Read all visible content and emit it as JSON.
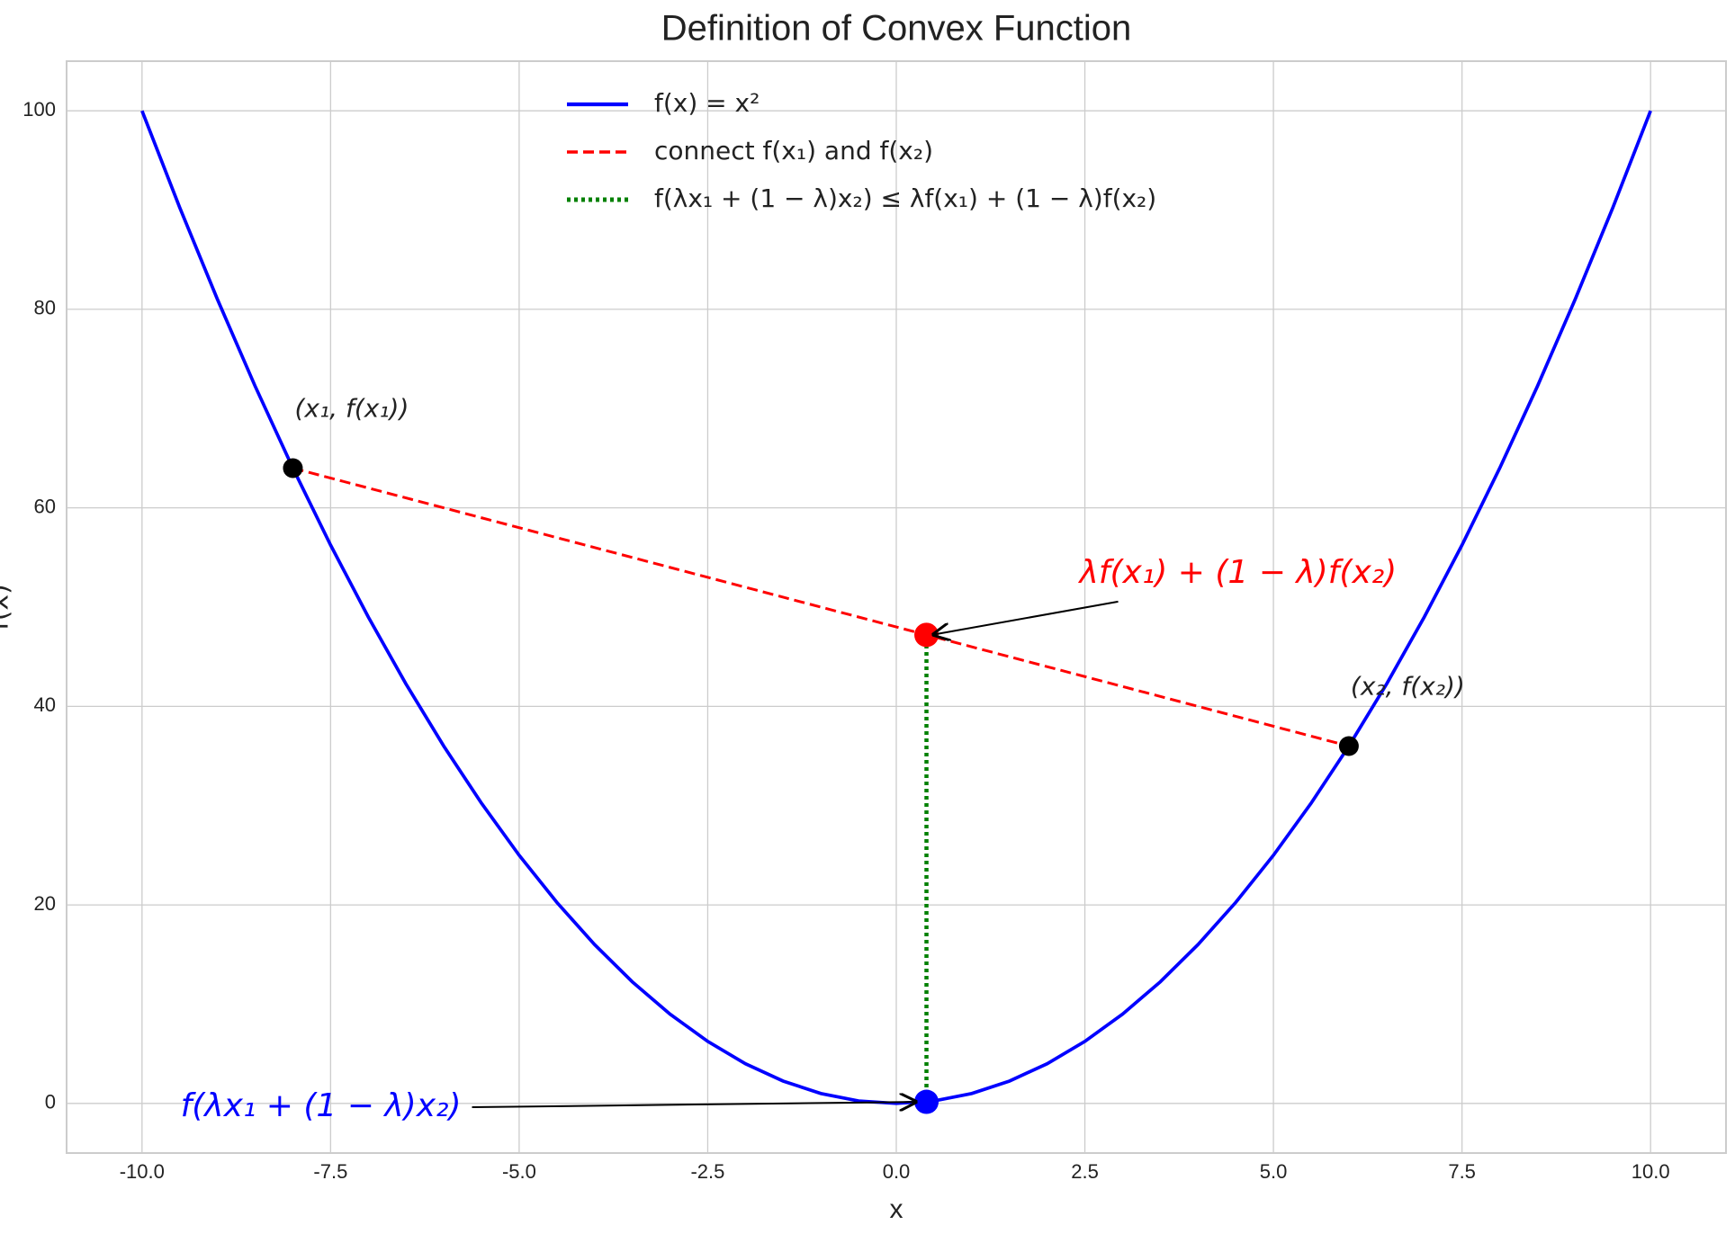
{
  "chart_data": {
    "type": "line",
    "title": "Definition of Convex Function",
    "xlabel": "x",
    "ylabel": "f(x)",
    "xlim": [
      -11,
      11
    ],
    "ylim": [
      -5,
      105
    ],
    "xticks": [
      {
        "value": -10,
        "label": "-10.0"
      },
      -7.5,
      {
        "value": -5,
        "label": "-5.0"
      },
      -2.5,
      {
        "value": 0,
        "label": "0.0"
      },
      2.5,
      {
        "value": 5,
        "label": "5.0"
      },
      7.5,
      {
        "value": 10,
        "label": "10.0"
      }
    ],
    "yticks": [
      0,
      20,
      40,
      60,
      80,
      100
    ],
    "grid": true,
    "legend": "upper center",
    "series": [
      {
        "name": "f(x) = x²",
        "color": "#0000ff",
        "dash": "solid",
        "x": [
          -10,
          -9.5,
          -9,
          -8.5,
          -8,
          -7.5,
          -7,
          -6.5,
          -6,
          -5.5,
          -5,
          -4.5,
          -4,
          -3.5,
          -3,
          -2.5,
          -2,
          -1.5,
          -1,
          -0.5,
          0,
          0.5,
          1,
          1.5,
          2,
          2.5,
          3,
          3.5,
          4,
          4.5,
          5,
          5.5,
          6,
          6.5,
          7,
          7.5,
          8,
          8.5,
          9,
          9.5,
          10
        ],
        "values": [
          100,
          90.25,
          81,
          72.25,
          64,
          56.25,
          49,
          42.25,
          36,
          30.25,
          25,
          20.25,
          16,
          12.25,
          9,
          6.25,
          4,
          2.25,
          1,
          0.25,
          0,
          0.25,
          1,
          2.25,
          4,
          6.25,
          9,
          12.25,
          16,
          20.25,
          25,
          30.25,
          36,
          42.25,
          49,
          56.25,
          64,
          72.25,
          81,
          90.25,
          100
        ]
      },
      {
        "name": "connect f(x₁) and f(x₂)",
        "color": "#ff0000",
        "dash": "dashed",
        "x": [
          -8,
          6
        ],
        "values": [
          64,
          36
        ]
      },
      {
        "name": "f(λx₁ + (1 − λ)x₂) ≤ λf(x₁) + (1 − λ)f(x₂)",
        "color": "#008000",
        "dash": "dotted",
        "x": [
          0.4,
          0.4
        ],
        "values": [
          0.16,
          47.2
        ]
      }
    ],
    "points": [
      {
        "x": -8,
        "y": 64,
        "color": "#000000"
      },
      {
        "x": 6,
        "y": 36,
        "color": "#000000"
      },
      {
        "x": 0.4,
        "y": 47.2,
        "color": "#ff0000"
      },
      {
        "x": 0.4,
        "y": 0.16,
        "color": "#0000ff"
      }
    ],
    "annotations": [
      {
        "text": "(x₁, f(x₁))",
        "color": "#222222"
      },
      {
        "text": "(x₂, f(x₂))",
        "color": "#222222"
      },
      {
        "text": "λf(x₁) + (1 − λ)f(x₂)",
        "color": "#ff0000"
      },
      {
        "text": "f(λx₁ + (1 − λ)x₂)",
        "color": "#0000ff"
      }
    ]
  }
}
